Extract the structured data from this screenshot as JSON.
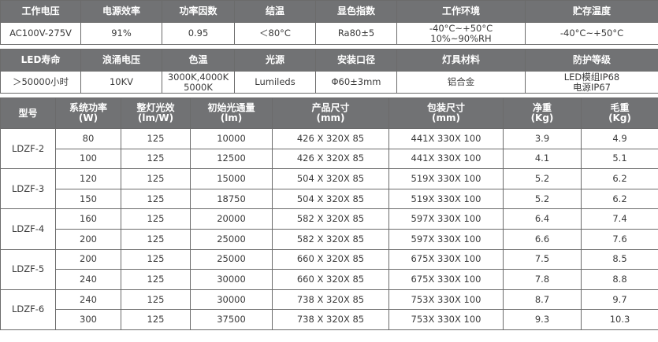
{
  "spec1": {
    "headers": [
      "工作电压",
      "电源效率",
      "功率因数",
      "结温",
      "显色指数",
      "工作环境",
      "贮存温度"
    ],
    "values": [
      "AC100V-275V",
      "91%",
      "0.95",
      "＜80°C",
      "Ra80±5",
      "-40°C~+50°C\n10%~90%RH",
      "-40°C~+50°C"
    ]
  },
  "spec2": {
    "headers": [
      "LED寿命",
      "浪涌电压",
      "色温",
      "光源",
      "安装口径",
      "灯具材料",
      "防护等级"
    ],
    "values": [
      "＞50000小时",
      "10KV",
      "3000K,4000K\n5000K",
      "Lumileds",
      "Φ60±3mm",
      "铝合金",
      "LED模组IP68\n电源IP67"
    ]
  },
  "models": {
    "headers": [
      "型号",
      "系统功率\n(W)",
      "整灯光效\n(lm/W)",
      "初始光通量\n(lm)",
      "产品尺寸\n(mm)",
      "包装尺寸\n(mm)",
      "净重\n(Kg)",
      "毛重\n(Kg)"
    ],
    "groups": [
      {
        "model": "LDZF-2",
        "rows": [
          [
            "80",
            "125",
            "10000",
            "426 X 320X 85",
            "441X 330X 100",
            "3.9",
            "4.9"
          ],
          [
            "100",
            "125",
            "12500",
            "426 X 320X 85",
            "441X 330X 100",
            "4.1",
            "5.1"
          ]
        ]
      },
      {
        "model": "LDZF-3",
        "rows": [
          [
            "120",
            "125",
            "15000",
            "504 X 320X 85",
            "519X 330X 100",
            "5.2",
            "6.2"
          ],
          [
            "150",
            "125",
            "18750",
            "504 X 320X 85",
            "519X 330X 100",
            "5.2",
            "6.2"
          ]
        ]
      },
      {
        "model": "LDZF-4",
        "rows": [
          [
            "160",
            "125",
            "20000",
            "582 X 320X 85",
            "597X 330X 100",
            "6.4",
            "7.4"
          ],
          [
            "200",
            "125",
            "25000",
            "582 X 320X 85",
            "597X 330X 100",
            "6.6",
            "7.6"
          ]
        ]
      },
      {
        "model": "LDZF-5",
        "rows": [
          [
            "200",
            "125",
            "25000",
            "660 X 320X 85",
            "675X 330X 100",
            "7.5",
            "8.5"
          ],
          [
            "240",
            "125",
            "30000",
            "660 X 320X 85",
            "675X 330X 100",
            "7.8",
            "8.8"
          ]
        ]
      },
      {
        "model": "LDZF-6",
        "rows": [
          [
            "240",
            "125",
            "30000",
            "738 X 320X 85",
            "753X 330X 100",
            "8.7",
            "9.7"
          ],
          [
            "300",
            "125",
            "37500",
            "738 X 320X 85",
            "753X 330X 100",
            "9.3",
            "10.3"
          ]
        ]
      }
    ]
  }
}
